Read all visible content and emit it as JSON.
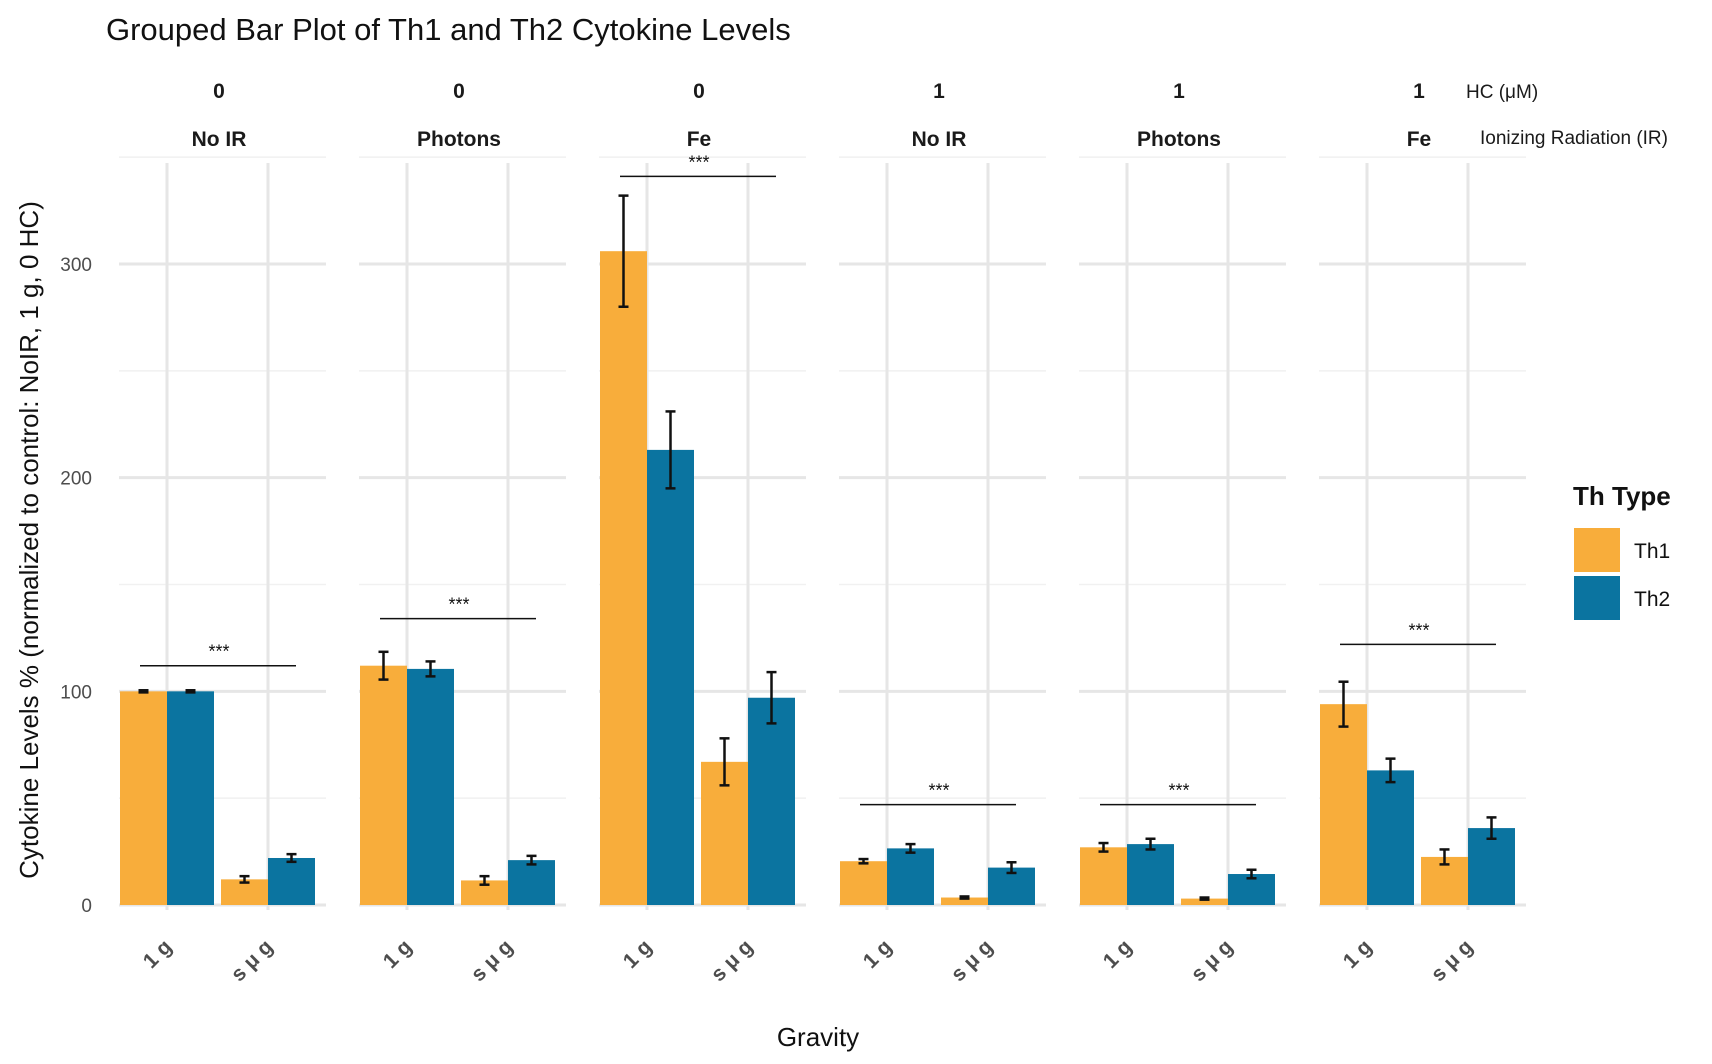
{
  "chart_data": {
    "type": "bar",
    "title": "Grouped Bar Plot of Th1 and Th2 Cytokine Levels",
    "xlabel": "Gravity",
    "ylabel": "Cytokine Levels % (normalized to control: NoIR, 1  g, 0 HC)",
    "ylim": [
      0,
      350
    ],
    "yticks": [
      0,
      100,
      200,
      300
    ],
    "facet_row_labels": {
      "hc": "HC (μM)",
      "ir": "Ionizing Radiation (IR)"
    },
    "categories": [
      "1 g",
      "s μ g"
    ],
    "legend": {
      "title": "Th  Type",
      "position": "right"
    },
    "series_colors": {
      "Th1": "#F8AD3B",
      "Th2": "#0B74A0"
    },
    "significance_label": "***",
    "panels": [
      {
        "hc": "0",
        "ir": "No IR",
        "series": [
          {
            "name": "Th1",
            "values": [
              100,
              12
            ],
            "errors": [
              0.5,
              1.5
            ]
          },
          {
            "name": "Th2",
            "values": [
              100,
              22
            ],
            "errors": [
              0.5,
              1.8
            ]
          }
        ],
        "sig_y": 112
      },
      {
        "hc": "0",
        "ir": "Photons",
        "series": [
          {
            "name": "Th1",
            "values": [
              112,
              11.5
            ],
            "errors": [
              6.5,
              2
            ]
          },
          {
            "name": "Th2",
            "values": [
              110.5,
              21
            ],
            "errors": [
              3.5,
              2
            ]
          }
        ],
        "sig_y": 134
      },
      {
        "hc": "0",
        "ir": "Fe",
        "series": [
          {
            "name": "Th1",
            "values": [
              306,
              67
            ],
            "errors": [
              26,
              11
            ]
          },
          {
            "name": "Th2",
            "values": [
              213,
              97
            ],
            "errors": [
              18,
              12
            ]
          }
        ],
        "sig_y": 341
      },
      {
        "hc": "1",
        "ir": "No IR",
        "series": [
          {
            "name": "Th1",
            "values": [
              20.5,
              3.5
            ],
            "errors": [
              1,
              0.5
            ]
          },
          {
            "name": "Th2",
            "values": [
              26.5,
              17.5
            ],
            "errors": [
              2,
              2.5
            ]
          }
        ],
        "sig_y": 47
      },
      {
        "hc": "1",
        "ir": "Photons",
        "series": [
          {
            "name": "Th1",
            "values": [
              27,
              3
            ],
            "errors": [
              2,
              0.5
            ]
          },
          {
            "name": "Th2",
            "values": [
              28.5,
              14.5
            ],
            "errors": [
              2.5,
              2
            ]
          }
        ],
        "sig_y": 47
      },
      {
        "hc": "1",
        "ir": "Fe",
        "series": [
          {
            "name": "Th1",
            "values": [
              94,
              22.5
            ],
            "errors": [
              10.5,
              3.5
            ]
          },
          {
            "name": "Th2",
            "values": [
              63,
              36
            ],
            "errors": [
              5.5,
              5
            ]
          }
        ],
        "sig_y": 122
      }
    ]
  }
}
